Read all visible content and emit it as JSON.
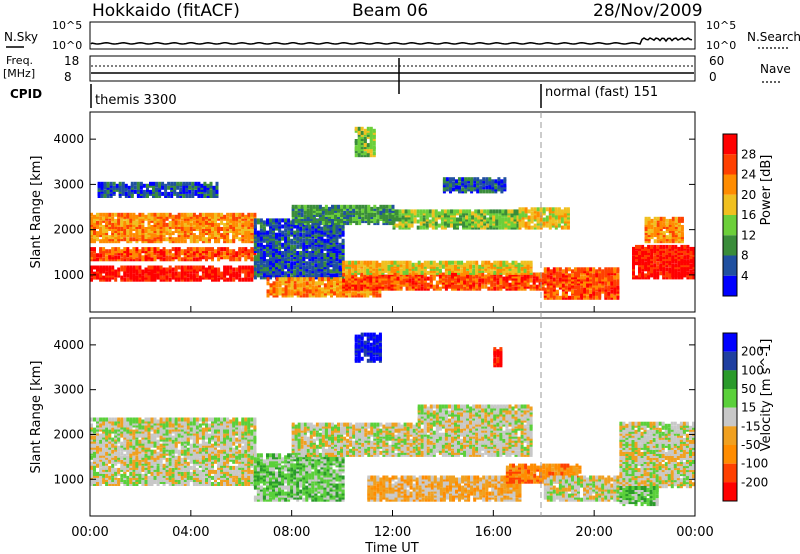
{
  "header": {
    "station": "Hokkaido (fitACF)",
    "beam": "Beam 06",
    "date": "28/Nov/2009"
  },
  "noise_panel": {
    "left_label": "N.Sky",
    "right_label": "N.Search",
    "left_ticks": [
      "10^5",
      "10^0"
    ],
    "right_ticks": [
      "10^5",
      "10^0"
    ]
  },
  "freq_panel": {
    "left_label_line1": "Freq.",
    "left_label_line2": "[MHz]",
    "right_label": "Nave",
    "left_ticks": [
      "18",
      "8"
    ],
    "right_ticks": [
      "60",
      "0"
    ]
  },
  "cpid_panel": {
    "label": "CPID",
    "modes": [
      {
        "text": "themis 3300",
        "start_hour": 0
      },
      {
        "text": "normal (fast) 151",
        "start_hour": 18
      }
    ]
  },
  "axes": {
    "ylabel": "Slant Range [km]",
    "xlabel": "Time UT",
    "xticks": [
      "00:00",
      "04:00",
      "08:00",
      "12:00",
      "16:00",
      "20:00",
      "00:00"
    ],
    "yticks": [
      "1000",
      "2000",
      "3000",
      "4000"
    ]
  },
  "chart_data": [
    {
      "type": "heatmap",
      "name": "power",
      "ylabel": "Slant Range [km]",
      "colorbar_label": "Power [dB]",
      "colorbar_ticks": [
        "28",
        "24",
        "20",
        "16",
        "12",
        "8",
        "4"
      ],
      "colors": [
        "#0000ff",
        "#2050a0",
        "#3a8c3a",
        "#6ccf3a",
        "#f0c020",
        "#ff8c00",
        "#ff4000",
        "#ff0000"
      ],
      "x_range_hours": [
        0,
        24
      ],
      "y_range_km": [
        180,
        4600
      ],
      "regions": [
        {
          "t0": 0.0,
          "t1": 6.5,
          "r0": 850,
          "r1": 1150,
          "level": 7
        },
        {
          "t0": 0.0,
          "t1": 6.5,
          "r0": 1300,
          "r1": 1550,
          "level": 6
        },
        {
          "t0": 0.0,
          "t1": 6.5,
          "r0": 1700,
          "r1": 2300,
          "level": 5
        },
        {
          "t0": 0.3,
          "t1": 5.0,
          "r0": 2700,
          "r1": 3000,
          "level": 1
        },
        {
          "t0": 6.5,
          "t1": 10.0,
          "r0": 900,
          "r1": 2200,
          "level": 1
        },
        {
          "t0": 7.0,
          "t1": 11.5,
          "r0": 500,
          "r1": 900,
          "level": 5
        },
        {
          "t0": 10.0,
          "t1": 18.0,
          "r0": 650,
          "r1": 1000,
          "level": 6
        },
        {
          "t0": 10.0,
          "t1": 17.5,
          "r0": 1000,
          "r1": 1250,
          "level": 4
        },
        {
          "t0": 10.5,
          "t1": 11.3,
          "r0": 3600,
          "r1": 4200,
          "level": 3
        },
        {
          "t0": 12.0,
          "t1": 17.0,
          "r0": 2000,
          "r1": 2400,
          "level": 3
        },
        {
          "t0": 8.0,
          "t1": 12.0,
          "r0": 2100,
          "r1": 2500,
          "level": 2
        },
        {
          "t0": 18.0,
          "t1": 21.0,
          "r0": 450,
          "r1": 1100,
          "level": 6
        },
        {
          "t0": 17.0,
          "t1": 19.0,
          "r0": 2000,
          "r1": 2450,
          "level": 4
        },
        {
          "t0": 21.5,
          "t1": 24.0,
          "r0": 900,
          "r1": 1600,
          "level": 7
        },
        {
          "t0": 22.0,
          "t1": 23.5,
          "r0": 1700,
          "r1": 2200,
          "level": 5
        },
        {
          "t0": 14.0,
          "t1": 16.5,
          "r0": 2800,
          "r1": 3100,
          "level": 1
        }
      ]
    },
    {
      "type": "heatmap",
      "name": "velocity",
      "ylabel": "Slant Range [km]",
      "colorbar_label": "Velocity [m s^-1]",
      "colorbar_ticks": [
        "200",
        "100",
        "50",
        "15",
        "-15",
        "-50",
        "-100",
        "-200"
      ],
      "colors": [
        "#ff0000",
        "#ff4000",
        "#ff8c00",
        "#f0a020",
        "#c8c8c8",
        "#5ad03a",
        "#2a9a2a",
        "#2040a0",
        "#0000ff"
      ],
      "x_range_hours": [
        0,
        24
      ],
      "y_range_km": [
        180,
        4600
      ],
      "regions": [
        {
          "t0": 0.0,
          "t1": 6.5,
          "r0": 850,
          "r1": 2300,
          "level": 4
        },
        {
          "t0": 6.5,
          "t1": 10.0,
          "r0": 500,
          "r1": 1500,
          "level": 5
        },
        {
          "t0": 8.0,
          "t1": 13.0,
          "r0": 1500,
          "r1": 2200,
          "level": 4
        },
        {
          "t0": 10.5,
          "t1": 11.5,
          "r0": 3600,
          "r1": 4200,
          "level": 8
        },
        {
          "t0": 11.0,
          "t1": 17.0,
          "r0": 500,
          "r1": 1000,
          "level": 3
        },
        {
          "t0": 13.0,
          "t1": 17.5,
          "r0": 1500,
          "r1": 2600,
          "level": 4
        },
        {
          "t0": 16.5,
          "t1": 19.5,
          "r0": 900,
          "r1": 1300,
          "level": 2
        },
        {
          "t0": 18.0,
          "t1": 21.0,
          "r0": 500,
          "r1": 1000,
          "level": 4
        },
        {
          "t0": 21.0,
          "t1": 24.0,
          "r0": 800,
          "r1": 2200,
          "level": 4
        },
        {
          "t0": 21.0,
          "t1": 22.5,
          "r0": 400,
          "r1": 800,
          "level": 5
        },
        {
          "t0": 16.0,
          "t1": 16.3,
          "r0": 3500,
          "r1": 3900,
          "level": 0
        }
      ]
    }
  ]
}
